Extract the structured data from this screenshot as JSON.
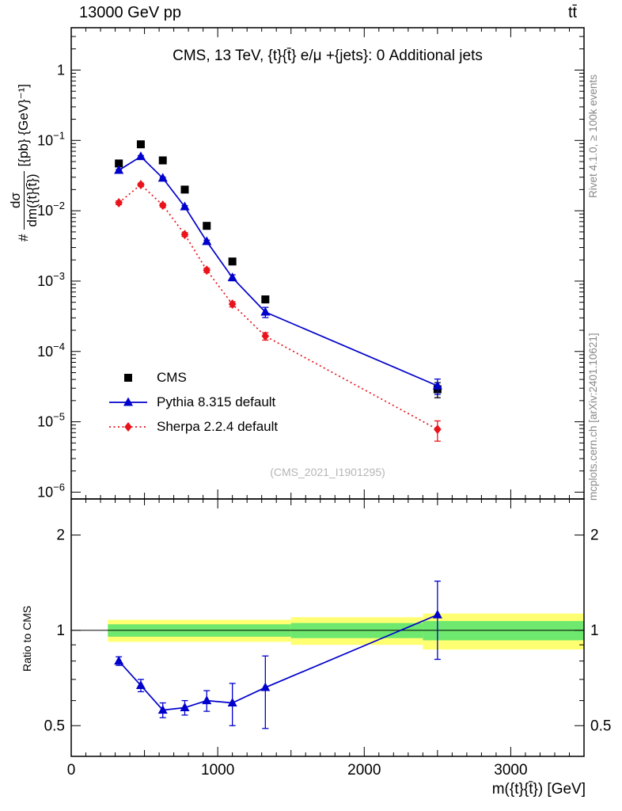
{
  "header": {
    "left": "13000 GeV pp",
    "right": "tt̄"
  },
  "title": "CMS, 13 TeV, {t}{t̄} e/μ +{jets}: 0 Additional jets",
  "watermark": "(CMS_2021_I1901295)",
  "side_notes": {
    "top": "Rivet 4.1.0, ≥ 100k events",
    "bottom": "mcplots.cern.ch [arXiv:2401.10621]"
  },
  "ylabel": {
    "prefix": "#",
    "numerator": "dσ",
    "denominator": "dm({t}{t̄})",
    "units": "[{pb} {GeV}⁻¹]"
  },
  "ratio_ylabel": "Ratio to CMS",
  "xlabel": "m({t}{t̄}) [GeV]",
  "colors": {
    "cms": "#000000",
    "pythia": "#0000cc",
    "sherpa": "#e8131b",
    "band_yellow": "#ffff72",
    "band_green": "#6ee86e",
    "watermark": "#b5b5b5",
    "side_note": "#8a8a8a"
  },
  "chart_data": {
    "type": "line",
    "title": "CMS, 13 TeV, {t}{t̄} e/μ +{jets}: 0 Additional jets",
    "xlabel": "m({t}{t̄}) [GeV]",
    "ylabel": "# dσ/dm({t}{t̄}) [pb GeV⁻¹]",
    "x_range": [
      0,
      3500
    ],
    "y_range": [
      8e-07,
      4
    ],
    "y_scale": "log",
    "x_ticks": [
      0,
      1000,
      2000,
      3000
    ],
    "x_minor_step": 100,
    "grid": false,
    "legend_position": "lower-left-inside",
    "x": [
      325,
      475,
      625,
      775,
      925,
      1100,
      1325,
      2500
    ],
    "series": [
      {
        "name": "CMS",
        "marker": "square",
        "color": "#000000",
        "line": "none",
        "values": [
          0.047,
          0.088,
          0.052,
          0.02,
          0.0061,
          0.0019,
          0.00055,
          2.9e-05
        ],
        "yerr": [
          0.004,
          0.007,
          0.004,
          0.0016,
          0.0005,
          0.00017,
          6e-05,
          7e-06
        ]
      },
      {
        "name": "Pythia 8.315 default",
        "marker": "triangle",
        "color": "#0000cc",
        "line": "solid",
        "values": [
          0.0376,
          0.059,
          0.0291,
          0.0114,
          0.00366,
          0.00112,
          0.000363,
          3.25e-05
        ],
        "yerr": [
          0.0012,
          0.0018,
          0.0009,
          0.0004,
          0.00016,
          0.00011,
          6e-05,
          8e-06
        ]
      },
      {
        "name": "Sherpa 2.2.4 default",
        "marker": "diamond",
        "color": "#e8131b",
        "line": "dotted",
        "values": [
          0.013,
          0.0235,
          0.012,
          0.0046,
          0.00143,
          0.00047,
          0.000165,
          7.8e-06
        ],
        "yerr": [
          0.0008,
          0.0012,
          0.0007,
          0.0003,
          0.0001,
          4e-05,
          2e-05,
          2.5e-06
        ]
      }
    ],
    "ratio": {
      "label": "Ratio to CMS",
      "y_range": [
        0.4,
        2.6
      ],
      "y_scale": "log",
      "ticks": [
        0.5,
        1,
        2
      ],
      "minor_ticks": [
        0.6,
        0.7,
        0.8,
        0.9
      ],
      "reference": 1,
      "series": [
        {
          "name": "Pythia 8.315 default",
          "color": "#0000cc",
          "marker": "triangle",
          "values": [
            0.8,
            0.67,
            0.56,
            0.57,
            0.6,
            0.59,
            0.66,
            1.12
          ],
          "yerr": [
            0.025,
            0.03,
            0.03,
            0.03,
            0.045,
            0.09,
            0.17,
            0.31
          ]
        }
      ],
      "bands": [
        {
          "x0": 250,
          "x1": 1500,
          "yellow": [
            0.92,
            1.08
          ],
          "green": [
            0.955,
            1.045
          ]
        },
        {
          "x0": 1500,
          "x1": 2400,
          "yellow": [
            0.9,
            1.1
          ],
          "green": [
            0.945,
            1.055
          ]
        },
        {
          "x0": 2400,
          "x1": 3500,
          "yellow": [
            0.87,
            1.13
          ],
          "green": [
            0.93,
            1.07
          ]
        }
      ]
    }
  }
}
